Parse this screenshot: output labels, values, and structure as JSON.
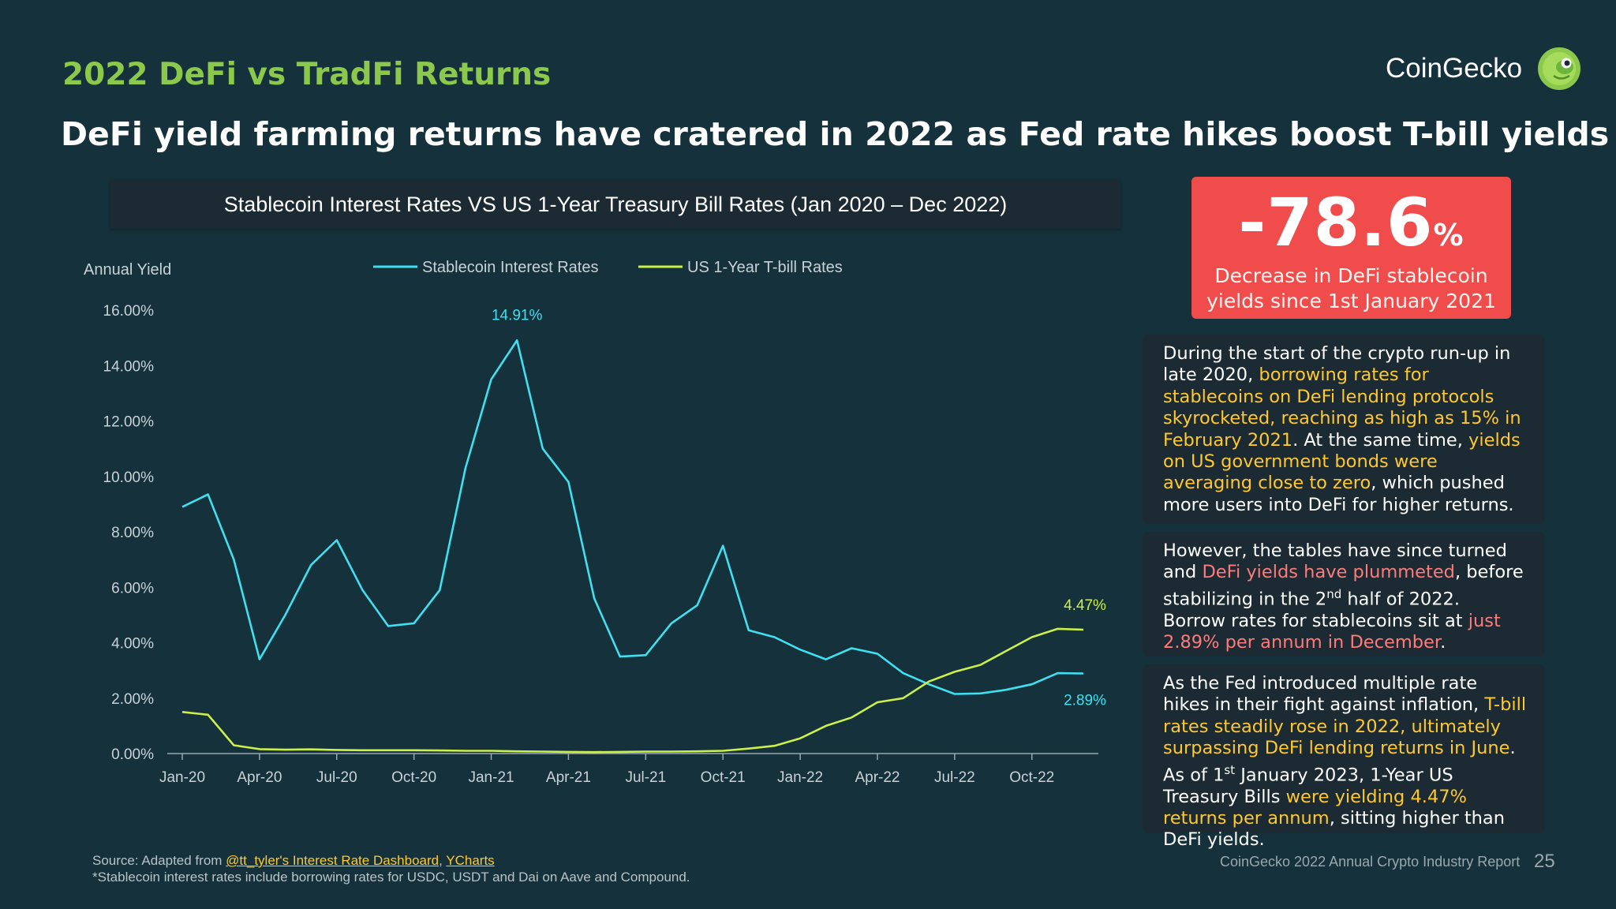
{
  "section_title": "2022 DeFi vs TradFi Returns",
  "headline": "DeFi yield farming returns have cratered in 2022 as Fed rate hikes boost T-bill yields",
  "brand": {
    "name": "CoinGecko",
    "logo_icon": "gecko-logo-icon"
  },
  "stat": {
    "value": "-78.6",
    "unit": "%",
    "caption_line1": "Decrease in DeFi stablecoin",
    "caption_line2": "yields since 1st January 2021",
    "color": "#f04c4b"
  },
  "cards": [
    {
      "segments": [
        {
          "t": "During the start of the crypto run-up in late 2020, ",
          "hl": ""
        },
        {
          "t": "borrowing rates for stablecoins on DeFi lending protocols skyrocketed, reaching as high as 15% in February 2021",
          "hl": "y"
        },
        {
          "t": ". At the same time, ",
          "hl": ""
        },
        {
          "t": "yields on US government bonds were averaging close to zero",
          "hl": "y"
        },
        {
          "t": ", which pushed more users into DeFi for higher returns.",
          "hl": ""
        }
      ]
    },
    {
      "segments": [
        {
          "t": "However, the tables have since turned and ",
          "hl": ""
        },
        {
          "t": "DeFi yields have plummeted",
          "hl": "r"
        },
        {
          "t": ", before stabilizing in the 2",
          "hl": ""
        },
        {
          "t": "nd",
          "hl": "sup"
        },
        {
          "t": " half of 2022.  Borrow rates for stablecoins sit at ",
          "hl": ""
        },
        {
          "t": "just 2.89% per annum in December",
          "hl": "r"
        },
        {
          "t": ".",
          "hl": ""
        }
      ]
    },
    {
      "segments": [
        {
          "t": "As the Fed introduced multiple rate hikes in their fight against inflation, ",
          "hl": ""
        },
        {
          "t": "T-bill rates steadily rose in 2022, ultimately surpassing DeFi lending returns in June",
          "hl": "y"
        },
        {
          "t": ". As of 1",
          "hl": ""
        },
        {
          "t": "st",
          "hl": "sup"
        },
        {
          "t": " January 2023, 1-Year US Treasury Bills ",
          "hl": ""
        },
        {
          "t": "were yielding 4.47% returns per annum",
          "hl": "y"
        },
        {
          "t": ", sitting higher than DeFi yields.",
          "hl": ""
        }
      ]
    }
  ],
  "source": {
    "prefix": "Source: Adapted from ",
    "link1": "@tt_tyler's Interest Rate Dashboard",
    "sep": ", ",
    "link2": "YCharts",
    "note": "*Stablecoin interest rates include borrowing rates for USDC, USDT and Dai on Aave and Compound."
  },
  "footer": "CoinGecko 2022 Annual Crypto Industry Report",
  "page_number": "25",
  "chart_data": {
    "type": "line",
    "title": "Stablecoin Interest Rates VS US 1-Year Treasury Bill Rates (Jan 2020 – Dec 2022)",
    "ylabel": "Annual Yield",
    "xlabel": "",
    "ylim": [
      0,
      16
    ],
    "yticks": [
      "0.00%",
      "2.00%",
      "4.00%",
      "6.00%",
      "8.00%",
      "10.00%",
      "12.00%",
      "14.00%",
      "16.00%"
    ],
    "x": [
      "Jan-20",
      "Feb-20",
      "Mar-20",
      "Apr-20",
      "May-20",
      "Jun-20",
      "Jul-20",
      "Aug-20",
      "Sep-20",
      "Oct-20",
      "Nov-20",
      "Dec-20",
      "Jan-21",
      "Feb-21",
      "Mar-21",
      "Apr-21",
      "May-21",
      "Jun-21",
      "Jul-21",
      "Aug-21",
      "Sep-21",
      "Oct-21",
      "Nov-21",
      "Dec-21",
      "Jan-22",
      "Feb-22",
      "Mar-22",
      "Apr-22",
      "May-22",
      "Jun-22",
      "Jul-22",
      "Aug-22",
      "Sep-22",
      "Oct-22",
      "Nov-22",
      "Dec-22"
    ],
    "xtick_labels": [
      "Jan-20",
      "Apr-20",
      "Jul-20",
      "Oct-20",
      "Jan-21",
      "Apr-21",
      "Jul-21",
      "Oct-21",
      "Jan-22",
      "Apr-22",
      "Jul-22",
      "Oct-22"
    ],
    "xtick_indices": [
      0,
      3,
      6,
      9,
      12,
      15,
      18,
      21,
      24,
      27,
      30,
      33
    ],
    "grid": false,
    "legend": "top",
    "series": [
      {
        "name": "Stablecoin Interest Rates",
        "color": "#3fe0f0",
        "values": [
          8.9,
          9.35,
          7.0,
          3.4,
          5.0,
          6.8,
          7.7,
          5.9,
          4.6,
          4.7,
          5.9,
          10.3,
          13.5,
          14.91,
          11.0,
          9.8,
          5.6,
          3.5,
          3.55,
          4.7,
          5.35,
          7.5,
          4.45,
          4.2,
          3.75,
          3.4,
          3.8,
          3.6,
          2.9,
          2.5,
          2.15,
          2.17,
          2.3,
          2.5,
          2.9,
          2.89
        ]
      },
      {
        "name": "US 1-Year T-bill Rates",
        "color": "#ccf04a",
        "values": [
          1.5,
          1.4,
          0.3,
          0.16,
          0.14,
          0.15,
          0.13,
          0.12,
          0.12,
          0.12,
          0.11,
          0.1,
          0.1,
          0.08,
          0.07,
          0.06,
          0.05,
          0.06,
          0.07,
          0.07,
          0.08,
          0.1,
          0.18,
          0.28,
          0.55,
          1.0,
          1.3,
          1.85,
          2.0,
          2.6,
          2.95,
          3.2,
          3.7,
          4.2,
          4.5,
          4.47
        ]
      }
    ],
    "annotations": [
      {
        "text": "14.91%",
        "series": 0,
        "index": 13,
        "color": "#3fe0f0"
      },
      {
        "text": "4.47%",
        "series": 1,
        "index": 35,
        "color": "#ccf04a"
      },
      {
        "text": "2.89%",
        "series": 0,
        "index": 35,
        "color": "#3fe0f0"
      }
    ],
    "axis_color": "#9aa8ae",
    "label_color": "#c8d2d6"
  }
}
